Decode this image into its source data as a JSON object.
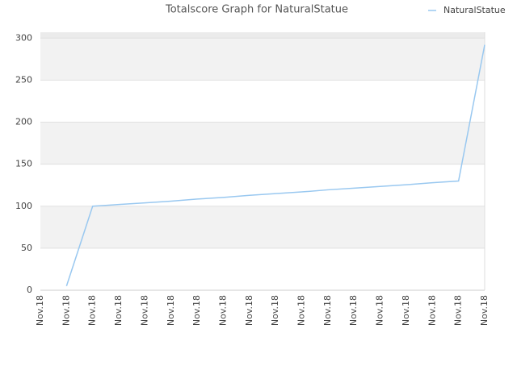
{
  "chart_data": {
    "type": "line",
    "title": "Totalscore Graph for NaturalStatue",
    "categories": [
      "Nov.18",
      "Nov.18",
      "Nov.18",
      "Nov.18",
      "Nov.18",
      "Nov.18",
      "Nov.18",
      "Nov.18",
      "Nov.18",
      "Nov.18",
      "Nov.18",
      "Nov.18",
      "Nov.18",
      "Nov.18",
      "Nov.18",
      "Nov.18",
      "Nov.18",
      "Nov.18"
    ],
    "series": [
      {
        "name": "NaturalStatue",
        "color": "#99c8f0",
        "values": [
          null,
          5,
          100,
          102,
          104,
          106,
          108.5,
          110.5,
          113,
          115,
          117,
          119.5,
          121.5,
          123.5,
          125.5,
          128,
          130,
          292
        ]
      }
    ],
    "ylim": [
      0,
      307
    ],
    "yticks": [
      0,
      50,
      100,
      150,
      200,
      250,
      300
    ],
    "grid": true,
    "legend": "top-right"
  }
}
